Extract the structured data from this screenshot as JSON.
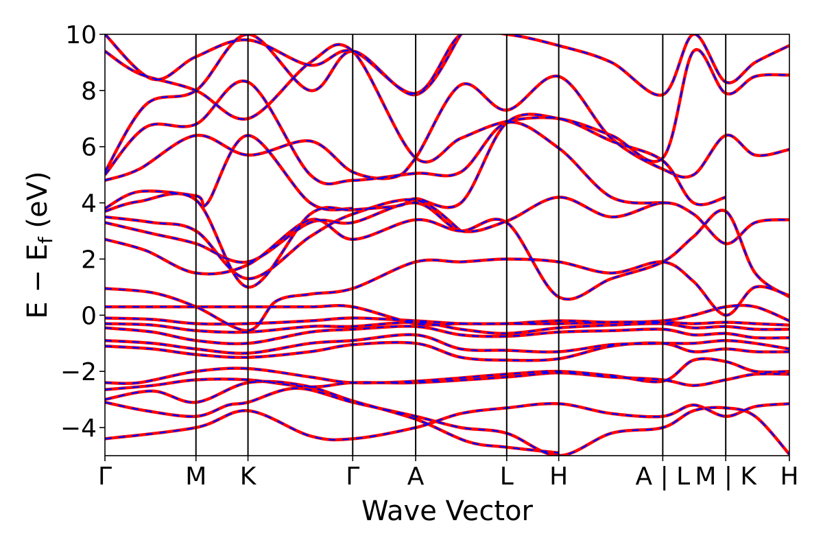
{
  "chart_data": {
    "type": "line",
    "title": "",
    "xlabel": "Wave Vector",
    "ylabel": "E − E",
    "ylabel_sub": "f",
    "ylabel_unit": " (eV)",
    "ylim": [
      -5,
      10
    ],
    "yticks": [
      -4,
      -2,
      0,
      2,
      4,
      6,
      8,
      10
    ],
    "ytick_labels": [
      "−4",
      "−2",
      "0",
      "2",
      "4",
      "6",
      "8",
      "10"
    ],
    "xlim": [
      0,
      1
    ],
    "grid": false,
    "kpoints": [
      {
        "label": "Γ",
        "x": 0.0
      },
      {
        "label": "M",
        "x": 0.133
      },
      {
        "label": "K",
        "x": 0.209
      },
      {
        "label": "Γ",
        "x": 0.362
      },
      {
        "label": "A",
        "x": 0.454
      },
      {
        "label": "L",
        "x": 0.587
      },
      {
        "label": "H",
        "x": 0.663
      },
      {
        "label": "A | L",
        "x": 0.815
      },
      {
        "label": "M | K",
        "x": 0.907
      },
      {
        "label": "H",
        "x": 1.0
      }
    ],
    "series": [
      {
        "color": "#ff0000",
        "style": "solid",
        "points": []
      },
      {
        "color": "#0000ff",
        "style": "dashed",
        "points": []
      }
    ],
    "bands": [
      [
        [
          0,
          -4.4
        ],
        [
          0.133,
          -4.0
        ],
        [
          0.209,
          -3.4
        ],
        [
          0.3,
          -4.3
        ],
        [
          0.362,
          -4.4
        ],
        [
          0.454,
          -4.0
        ],
        [
          0.52,
          -3.5
        ],
        [
          0.587,
          -3.3
        ],
        [
          0.663,
          -3.15
        ],
        [
          0.74,
          -3.5
        ],
        [
          0.815,
          -3.6
        ],
        [
          0.86,
          -3.2
        ],
        [
          0.907,
          -3.6
        ],
        [
          0.95,
          -3.25
        ],
        [
          1.0,
          -3.15
        ]
      ],
      [
        [
          0,
          -3.1
        ],
        [
          0.06,
          -3.4
        ],
        [
          0.133,
          -3.6
        ],
        [
          0.18,
          -3.2
        ],
        [
          0.209,
          -3.1
        ],
        [
          0.28,
          -2.6
        ],
        [
          0.362,
          -3.1
        ],
        [
          0.454,
          -3.6
        ],
        [
          0.52,
          -4.0
        ],
        [
          0.587,
          -4.2
        ],
        [
          0.663,
          -5.0
        ],
        [
          0.74,
          -4.2
        ],
        [
          0.815,
          -4.0
        ],
        [
          0.86,
          -3.4
        ],
        [
          0.907,
          -3.3
        ],
        [
          0.95,
          -3.6
        ],
        [
          1.0,
          -4.95
        ]
      ],
      [
        [
          0,
          -3.0
        ],
        [
          0.07,
          -2.7
        ],
        [
          0.133,
          -3.1
        ],
        [
          0.209,
          -2.4
        ],
        [
          0.29,
          -2.5
        ],
        [
          0.362,
          -3.05
        ],
        [
          0.454,
          -3.7
        ],
        [
          0.53,
          -4.5
        ],
        [
          0.587,
          -4.7
        ],
        [
          0.663,
          -4.9
        ]
      ],
      [
        [
          0,
          -2.4
        ],
        [
          0.05,
          -2.4
        ],
        [
          0.133,
          -2.0
        ],
        [
          0.209,
          -1.9
        ],
        [
          0.3,
          -2.2
        ],
        [
          0.362,
          -2.4
        ],
        [
          0.454,
          -2.35
        ],
        [
          0.587,
          -2.1
        ],
        [
          0.663,
          -2.0
        ],
        [
          0.74,
          -2.15
        ],
        [
          0.815,
          -2.35
        ],
        [
          0.86,
          -1.6
        ],
        [
          0.907,
          -1.65
        ],
        [
          0.95,
          -2.0
        ],
        [
          1.0,
          -2.0
        ]
      ],
      [
        [
          0,
          -2.65
        ],
        [
          0.07,
          -2.5
        ],
        [
          0.133,
          -2.3
        ],
        [
          0.209,
          -2.3
        ],
        [
          0.3,
          -2.55
        ],
        [
          0.362,
          -2.4
        ],
        [
          0.454,
          -2.4
        ],
        [
          0.587,
          -2.2
        ],
        [
          0.663,
          -2.05
        ],
        [
          0.74,
          -2.2
        ],
        [
          0.815,
          -2.3
        ],
        [
          0.86,
          -2.5
        ],
        [
          0.907,
          -2.3
        ],
        [
          0.95,
          -2.1
        ],
        [
          1.0,
          -2.1
        ]
      ],
      [
        [
          0,
          -1.1
        ],
        [
          0.07,
          -1.2
        ],
        [
          0.133,
          -1.4
        ],
        [
          0.209,
          -1.5
        ],
        [
          0.3,
          -1.3
        ],
        [
          0.362,
          -1.05
        ],
        [
          0.454,
          -1.0
        ],
        [
          0.52,
          -1.5
        ],
        [
          0.587,
          -1.6
        ],
        [
          0.663,
          -1.55
        ],
        [
          0.74,
          -1.1
        ],
        [
          0.815,
          -1.0
        ],
        [
          0.86,
          -1.3
        ],
        [
          0.907,
          -1.2
        ],
        [
          0.95,
          -1.3
        ],
        [
          1.0,
          -1.3
        ]
      ],
      [
        [
          0,
          -0.9
        ],
        [
          0.07,
          -1.0
        ],
        [
          0.133,
          -1.2
        ],
        [
          0.209,
          -1.35
        ],
        [
          0.3,
          -1.0
        ],
        [
          0.362,
          -0.9
        ],
        [
          0.454,
          -0.7
        ],
        [
          0.52,
          -1.2
        ],
        [
          0.587,
          -1.25
        ],
        [
          0.663,
          -1.3
        ],
        [
          0.74,
          -1.05
        ],
        [
          0.815,
          -1.0
        ],
        [
          0.86,
          -1.0
        ],
        [
          0.907,
          -0.9
        ],
        [
          0.95,
          -1.0
        ],
        [
          1.0,
          -1.2
        ]
      ],
      [
        [
          0,
          -0.45
        ],
        [
          0.07,
          -0.6
        ],
        [
          0.133,
          -0.9
        ],
        [
          0.209,
          -1.0
        ],
        [
          0.3,
          -0.6
        ],
        [
          0.362,
          -0.5
        ],
        [
          0.454,
          -0.4
        ],
        [
          0.52,
          -0.7
        ],
        [
          0.587,
          -0.75
        ],
        [
          0.663,
          -0.6
        ],
        [
          0.74,
          -0.55
        ],
        [
          0.815,
          -0.5
        ],
        [
          0.86,
          -0.7
        ],
        [
          0.907,
          -0.65
        ],
        [
          0.95,
          -0.8
        ],
        [
          1.0,
          -0.8
        ]
      ],
      [
        [
          0,
          -0.3
        ],
        [
          0.07,
          -0.35
        ],
        [
          0.133,
          -0.55
        ],
        [
          0.209,
          -0.6
        ],
        [
          0.3,
          -0.4
        ],
        [
          0.362,
          -0.4
        ],
        [
          0.454,
          -0.25
        ],
        [
          0.52,
          -0.5
        ],
        [
          0.587,
          -0.65
        ],
        [
          0.663,
          -0.45
        ],
        [
          0.74,
          -0.35
        ],
        [
          0.815,
          -0.3
        ],
        [
          0.86,
          -0.45
        ],
        [
          0.907,
          -0.4
        ],
        [
          0.95,
          -0.5
        ],
        [
          1.0,
          -0.5
        ]
      ],
      [
        [
          0,
          -0.1
        ],
        [
          0.07,
          -0.15
        ],
        [
          0.133,
          -0.3
        ],
        [
          0.209,
          -0.3
        ],
        [
          0.3,
          -0.2
        ],
        [
          0.362,
          -0.1
        ],
        [
          0.454,
          -0.2
        ],
        [
          0.52,
          -0.3
        ],
        [
          0.587,
          -0.3
        ],
        [
          0.663,
          -0.3
        ],
        [
          0.74,
          -0.25
        ],
        [
          0.815,
          -0.25
        ],
        [
          0.86,
          -0.3
        ],
        [
          0.907,
          -0.25
        ],
        [
          0.95,
          -0.3
        ],
        [
          1.0,
          -0.35
        ]
      ],
      [
        [
          0,
          0.3
        ],
        [
          0.07,
          0.3
        ],
        [
          0.133,
          0.3
        ],
        [
          0.209,
          0.3
        ],
        [
          0.3,
          0.3
        ],
        [
          0.362,
          0.3
        ],
        [
          0.454,
          -0.3
        ],
        [
          0.52,
          -0.3
        ],
        [
          0.587,
          -0.3
        ],
        [
          0.663,
          -0.2
        ],
        [
          0.74,
          -0.25
        ],
        [
          0.815,
          -0.2
        ],
        [
          0.86,
          0.0
        ],
        [
          0.907,
          0.3
        ],
        [
          0.95,
          0.3
        ],
        [
          1.0,
          -0.2
        ]
      ],
      [
        [
          0,
          0.95
        ],
        [
          0.07,
          0.8
        ],
        [
          0.133,
          0.3
        ],
        [
          0.209,
          -0.55
        ],
        [
          0.25,
          0.5
        ],
        [
          0.3,
          0.75
        ],
        [
          0.362,
          0.95
        ],
        [
          0.454,
          1.9
        ],
        [
          0.52,
          1.9
        ],
        [
          0.587,
          2.0
        ],
        [
          0.663,
          1.9
        ],
        [
          0.74,
          1.5
        ],
        [
          0.815,
          1.9
        ],
        [
          0.86,
          1.2
        ],
        [
          0.907,
          0.0
        ],
        [
          0.95,
          1.0
        ],
        [
          1.0,
          0.7
        ]
      ],
      [
        [
          0,
          2.7
        ],
        [
          0.06,
          2.3
        ],
        [
          0.133,
          1.5
        ],
        [
          0.209,
          1.8
        ],
        [
          0.3,
          3.4
        ],
        [
          0.362,
          2.7
        ],
        [
          0.454,
          3.4
        ],
        [
          0.52,
          3.0
        ],
        [
          0.587,
          3.3
        ],
        [
          0.663,
          0.65
        ],
        [
          0.74,
          1.3
        ],
        [
          0.815,
          1.9
        ],
        [
          0.86,
          2.8
        ],
        [
          0.907,
          3.7
        ],
        [
          0.95,
          1.5
        ],
        [
          1.0,
          0.65
        ]
      ],
      [
        [
          0,
          3.3
        ],
        [
          0.07,
          2.9
        ],
        [
          0.133,
          2.55
        ],
        [
          0.209,
          1.9
        ],
        [
          0.3,
          3.3
        ],
        [
          0.362,
          3.3
        ],
        [
          0.454,
          4.0
        ],
        [
          0.52,
          3.0
        ],
        [
          0.587,
          3.35
        ],
        [
          0.663,
          4.2
        ],
        [
          0.74,
          3.5
        ],
        [
          0.815,
          4.0
        ],
        [
          0.86,
          3.6
        ],
        [
          0.907,
          2.55
        ],
        [
          0.95,
          3.3
        ],
        [
          1.0,
          3.4
        ]
      ],
      [
        [
          0,
          3.5
        ],
        [
          0.07,
          3.3
        ],
        [
          0.133,
          3.0
        ],
        [
          0.209,
          1.3
        ],
        [
          0.3,
          2.8
        ],
        [
          0.362,
          3.6
        ],
        [
          0.454,
          4.1
        ],
        [
          0.52,
          3.0
        ]
      ],
      [
        [
          0,
          3.7
        ],
        [
          0.05,
          4.05
        ],
        [
          0.133,
          4.1
        ],
        [
          0.209,
          1.0
        ],
        [
          0.3,
          3.6
        ],
        [
          0.362,
          3.75
        ],
        [
          0.43,
          3.9
        ],
        [
          0.454,
          4.15
        ],
        [
          0.52,
          4.0
        ],
        [
          0.587,
          6.85
        ],
        [
          0.663,
          7.0
        ],
        [
          0.74,
          6.2
        ],
        [
          0.815,
          5.5
        ],
        [
          0.86,
          4.0
        ],
        [
          0.907,
          4.2
        ]
      ],
      [
        [
          0,
          3.8
        ],
        [
          0.05,
          4.4
        ],
        [
          0.133,
          4.25
        ],
        [
          0.15,
          4.0
        ],
        [
          0.209,
          6.4
        ],
        [
          0.3,
          4.0
        ],
        [
          0.362,
          3.8
        ]
      ],
      [
        [
          0,
          4.8
        ],
        [
          0.05,
          5.2
        ],
        [
          0.133,
          6.4
        ],
        [
          0.209,
          5.7
        ],
        [
          0.3,
          6.2
        ],
        [
          0.362,
          5.1
        ],
        [
          0.42,
          4.9
        ],
        [
          0.454,
          5.6
        ],
        [
          0.52,
          8.2
        ],
        [
          0.587,
          7.3
        ],
        [
          0.663,
          8.5
        ],
        [
          0.74,
          6.3
        ],
        [
          0.815,
          5.2
        ],
        [
          0.86,
          5.0
        ],
        [
          0.907,
          6.4
        ],
        [
          0.95,
          5.7
        ],
        [
          1.0,
          5.9
        ]
      ],
      [
        [
          0,
          5.0
        ],
        [
          0.06,
          6.7
        ],
        [
          0.133,
          6.8
        ],
        [
          0.209,
          8.3
        ],
        [
          0.3,
          5.0
        ],
        [
          0.362,
          4.8
        ],
        [
          0.454,
          5.05
        ],
        [
          0.52,
          5.1
        ],
        [
          0.587,
          6.85
        ],
        [
          0.663,
          5.95
        ],
        [
          0.74,
          4.2
        ],
        [
          0.815,
          4.0
        ]
      ],
      [
        [
          0,
          5.1
        ],
        [
          0.06,
          7.5
        ],
        [
          0.133,
          8.0
        ],
        [
          0.209,
          10.0
        ],
        [
          0.3,
          8.0
        ],
        [
          0.362,
          9.4
        ],
        [
          0.454,
          7.85
        ],
        [
          0.52,
          10.0
        ]
      ],
      [
        [
          0,
          9.4
        ],
        [
          0.05,
          8.6
        ],
        [
          0.133,
          8.0
        ],
        [
          0.209,
          7.0
        ],
        [
          0.3,
          9.0
        ],
        [
          0.362,
          9.4
        ],
        [
          0.454,
          5.6
        ],
        [
          0.52,
          6.3
        ],
        [
          0.587,
          6.9
        ],
        [
          0.663,
          7.0
        ],
        [
          0.74,
          6.4
        ],
        [
          0.815,
          5.6
        ],
        [
          0.86,
          9.4
        ],
        [
          0.907,
          7.9
        ],
        [
          0.95,
          8.5
        ],
        [
          1.0,
          8.55
        ]
      ],
      [
        [
          0,
          10.0
        ],
        [
          0.07,
          8.4
        ],
        [
          0.133,
          9.2
        ],
        [
          0.209,
          9.8
        ],
        [
          0.3,
          8.9
        ],
        [
          0.362,
          9.4
        ],
        [
          0.454,
          7.9
        ],
        [
          0.52,
          10.0
        ],
        [
          0.587,
          10.0
        ],
        [
          0.663,
          9.6
        ],
        [
          0.74,
          9.0
        ],
        [
          0.815,
          7.85
        ],
        [
          0.86,
          10.0
        ],
        [
          0.907,
          8.3
        ],
        [
          0.95,
          9.0
        ],
        [
          1.0,
          9.6
        ]
      ]
    ]
  }
}
